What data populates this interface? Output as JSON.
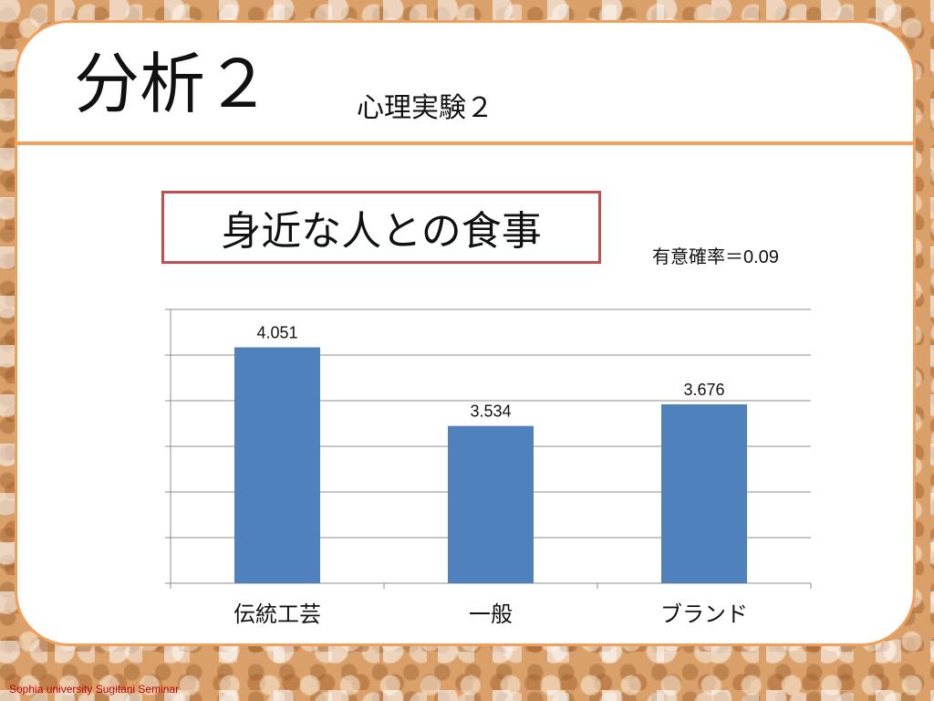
{
  "slide": {
    "title": "分析２",
    "subtitle": "心理実験２",
    "significance": "有意確率＝0.09",
    "footer": "Sophia university Sugitani Seminar"
  },
  "colors": {
    "accent": "#f0a05a",
    "bar": "#4f81bd",
    "chart_title_border": "#c0504d",
    "footer": "#c00000"
  },
  "chart_data": {
    "type": "bar",
    "title": "身近な人との食事",
    "xlabel": "",
    "ylabel": "",
    "categories": [
      "伝統工芸",
      "一般",
      "ブランド"
    ],
    "values": [
      4.051,
      3.534,
      3.676
    ],
    "data_labels": [
      "4.051",
      "3.534",
      "3.676"
    ],
    "ylim": [
      2.5,
      4.3
    ],
    "ytick_step": 0.3,
    "grid": true,
    "legend": "none"
  }
}
